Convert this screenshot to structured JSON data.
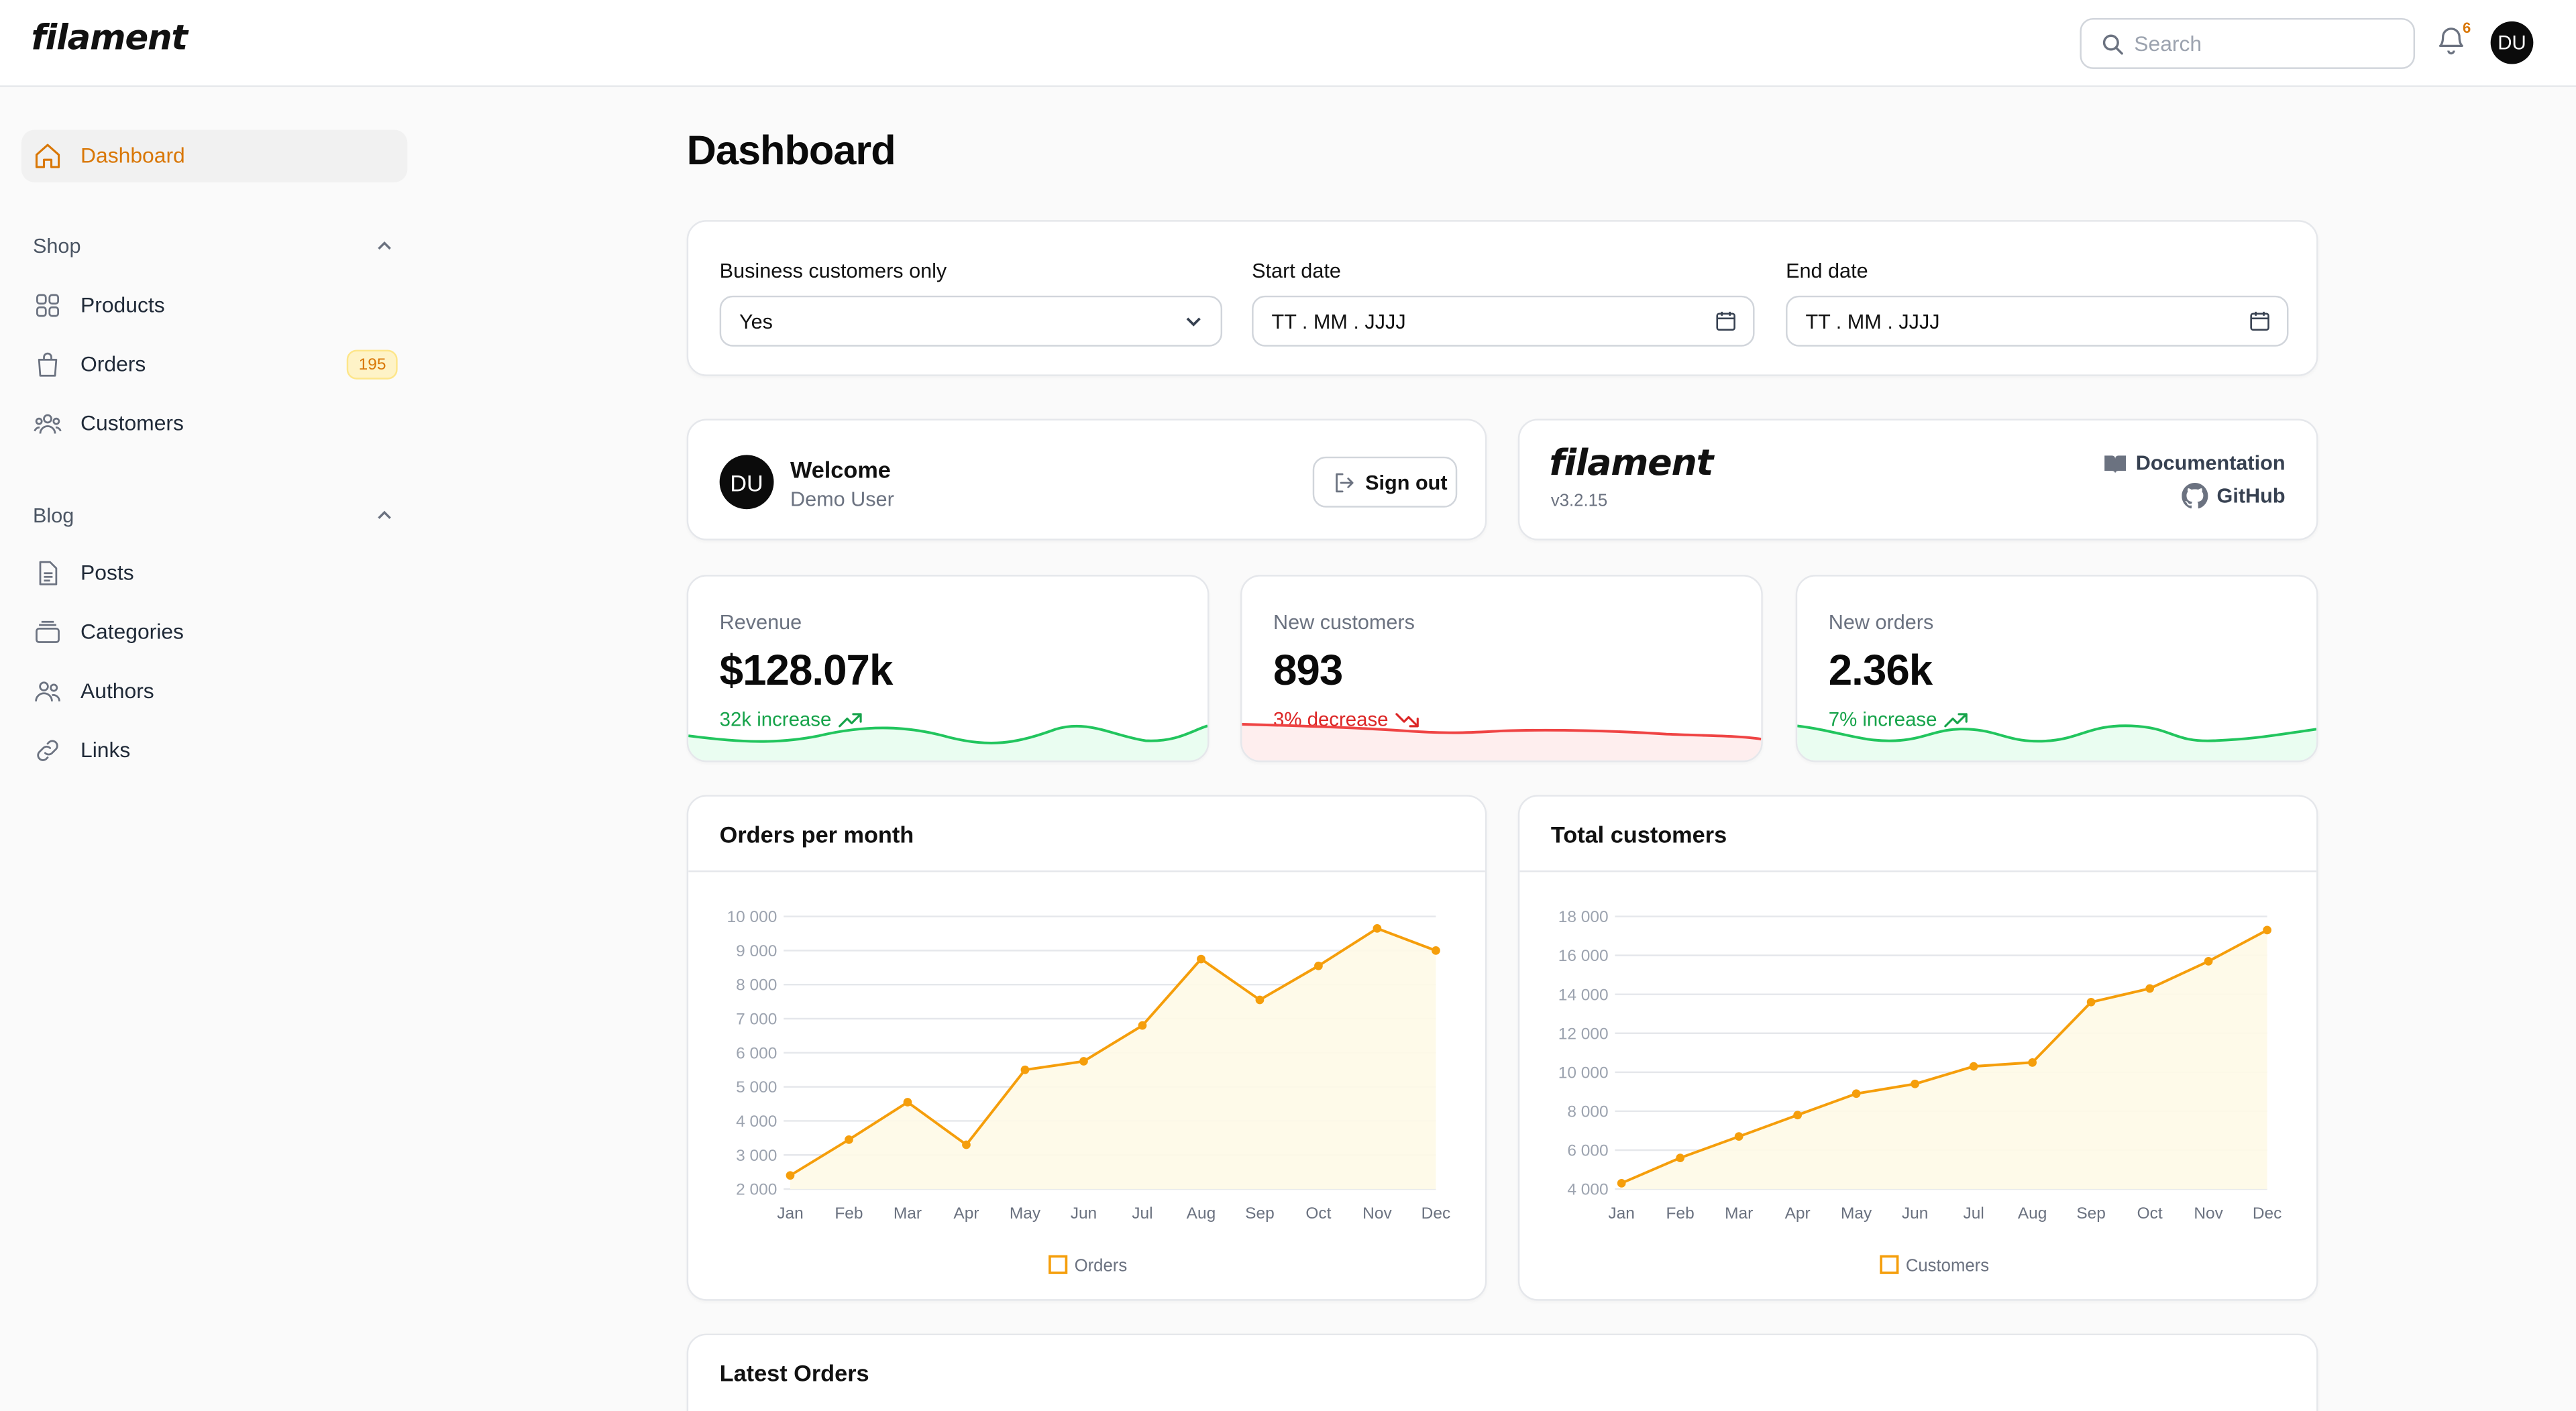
{
  "app": {
    "logo": "filament"
  },
  "topbar": {
    "search_placeholder": "Search",
    "notification_count": "6",
    "user_initials": "DU"
  },
  "sidebar": {
    "dashboard": "Dashboard",
    "groups": [
      {
        "title": "Shop",
        "items": [
          {
            "label": "Products"
          },
          {
            "label": "Orders",
            "badge": "195"
          },
          {
            "label": "Customers"
          }
        ]
      },
      {
        "title": "Blog",
        "items": [
          {
            "label": "Posts"
          },
          {
            "label": "Categories"
          },
          {
            "label": "Authors"
          },
          {
            "label": "Links"
          }
        ]
      }
    ]
  },
  "page": {
    "title": "Dashboard"
  },
  "filters": {
    "business": {
      "label": "Business customers only",
      "value": "Yes"
    },
    "start": {
      "label": "Start date",
      "value": "TT . MM . JJJJ"
    },
    "end": {
      "label": "End date",
      "value": "TT . MM . JJJJ"
    }
  },
  "welcome": {
    "title": "Welcome",
    "user": "Demo User",
    "initials": "DU",
    "signout": "Sign out"
  },
  "info": {
    "logo": "filament",
    "version": "v3.2.15",
    "docs": "Documentation",
    "github": "GitHub"
  },
  "stats": [
    {
      "label": "Revenue",
      "value": "$128.07k",
      "description": "32k increase",
      "trend": "up",
      "color": "#16a34a"
    },
    {
      "label": "New customers",
      "value": "893",
      "description": "3% decrease",
      "trend": "down",
      "color": "#dc2626"
    },
    {
      "label": "New orders",
      "value": "2.36k",
      "description": "7% increase",
      "trend": "up",
      "color": "#16a34a"
    }
  ],
  "chart_data": [
    {
      "type": "line",
      "title": "Orders per month",
      "categories": [
        "Jan",
        "Feb",
        "Mar",
        "Apr",
        "May",
        "Jun",
        "Jul",
        "Aug",
        "Sep",
        "Oct",
        "Nov",
        "Dec"
      ],
      "series": [
        {
          "name": "Orders",
          "values": [
            2400,
            3450,
            4550,
            3300,
            5500,
            5750,
            6800,
            8750,
            7550,
            8550,
            9650,
            9000
          ]
        }
      ],
      "yticks": [
        2000,
        3000,
        4000,
        5000,
        6000,
        7000,
        8000,
        9000,
        10000
      ],
      "ytick_labels": [
        "2 000",
        "3 000",
        "4 000",
        "5 000",
        "6 000",
        "7 000",
        "8 000",
        "9 000",
        "10 000"
      ],
      "ylim": [
        2000,
        10000
      ],
      "fill": true,
      "color": "#f59e0b",
      "legend": "bottom-center"
    },
    {
      "type": "line",
      "title": "Total customers",
      "categories": [
        "Jan",
        "Feb",
        "Mar",
        "Apr",
        "May",
        "Jun",
        "Jul",
        "Aug",
        "Sep",
        "Oct",
        "Nov",
        "Dec"
      ],
      "series": [
        {
          "name": "Customers",
          "values": [
            4300,
            5600,
            6700,
            7800,
            8900,
            9400,
            10300,
            10500,
            13600,
            14300,
            15700,
            17300
          ]
        }
      ],
      "yticks": [
        4000,
        6000,
        8000,
        10000,
        12000,
        14000,
        16000,
        18000
      ],
      "ytick_labels": [
        "4 000",
        "6 000",
        "8 000",
        "10 000",
        "12 000",
        "14 000",
        "16 000",
        "18 000"
      ],
      "ylim": [
        4000,
        18000
      ],
      "fill": true,
      "color": "#f59e0b",
      "legend": "bottom-center"
    }
  ],
  "latest_orders": {
    "title": "Latest Orders"
  }
}
